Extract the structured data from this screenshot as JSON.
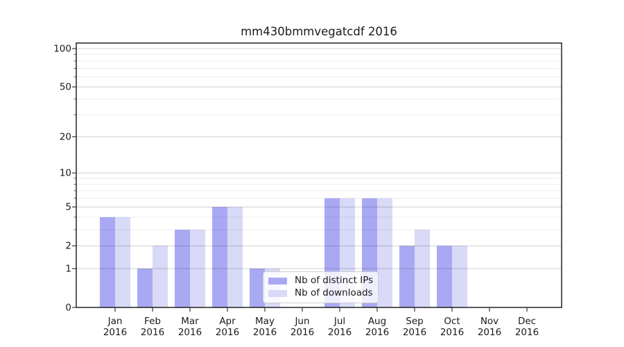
{
  "chart_data": {
    "type": "bar",
    "title": "mm430bmmvegatcdf 2016",
    "year": "2016",
    "categories": [
      "Jan",
      "Feb",
      "Mar",
      "Apr",
      "May",
      "Jun",
      "Jul",
      "Aug",
      "Sep",
      "Oct",
      "Nov",
      "Dec"
    ],
    "series": [
      {
        "name": "Nb of distinct IPs",
        "color": "#a9a9f3",
        "values": [
          4,
          1,
          3,
          5,
          1,
          0,
          6,
          6,
          2,
          2,
          0,
          0
        ]
      },
      {
        "name": "Nb of downloads",
        "color": "#d9d9f8",
        "values": [
          4,
          2,
          3,
          5,
          1,
          0,
          6,
          6,
          3,
          2,
          0,
          0
        ]
      }
    ],
    "yscale": "log1p",
    "ylim": [
      0,
      100
    ],
    "yticks": [
      0,
      1,
      2,
      5,
      10,
      20,
      50,
      100
    ],
    "minor_yticks": [
      3,
      4,
      6,
      7,
      8,
      9,
      30,
      40,
      60,
      70,
      80,
      90
    ],
    "grid": true,
    "legend_position": "lower-center"
  }
}
